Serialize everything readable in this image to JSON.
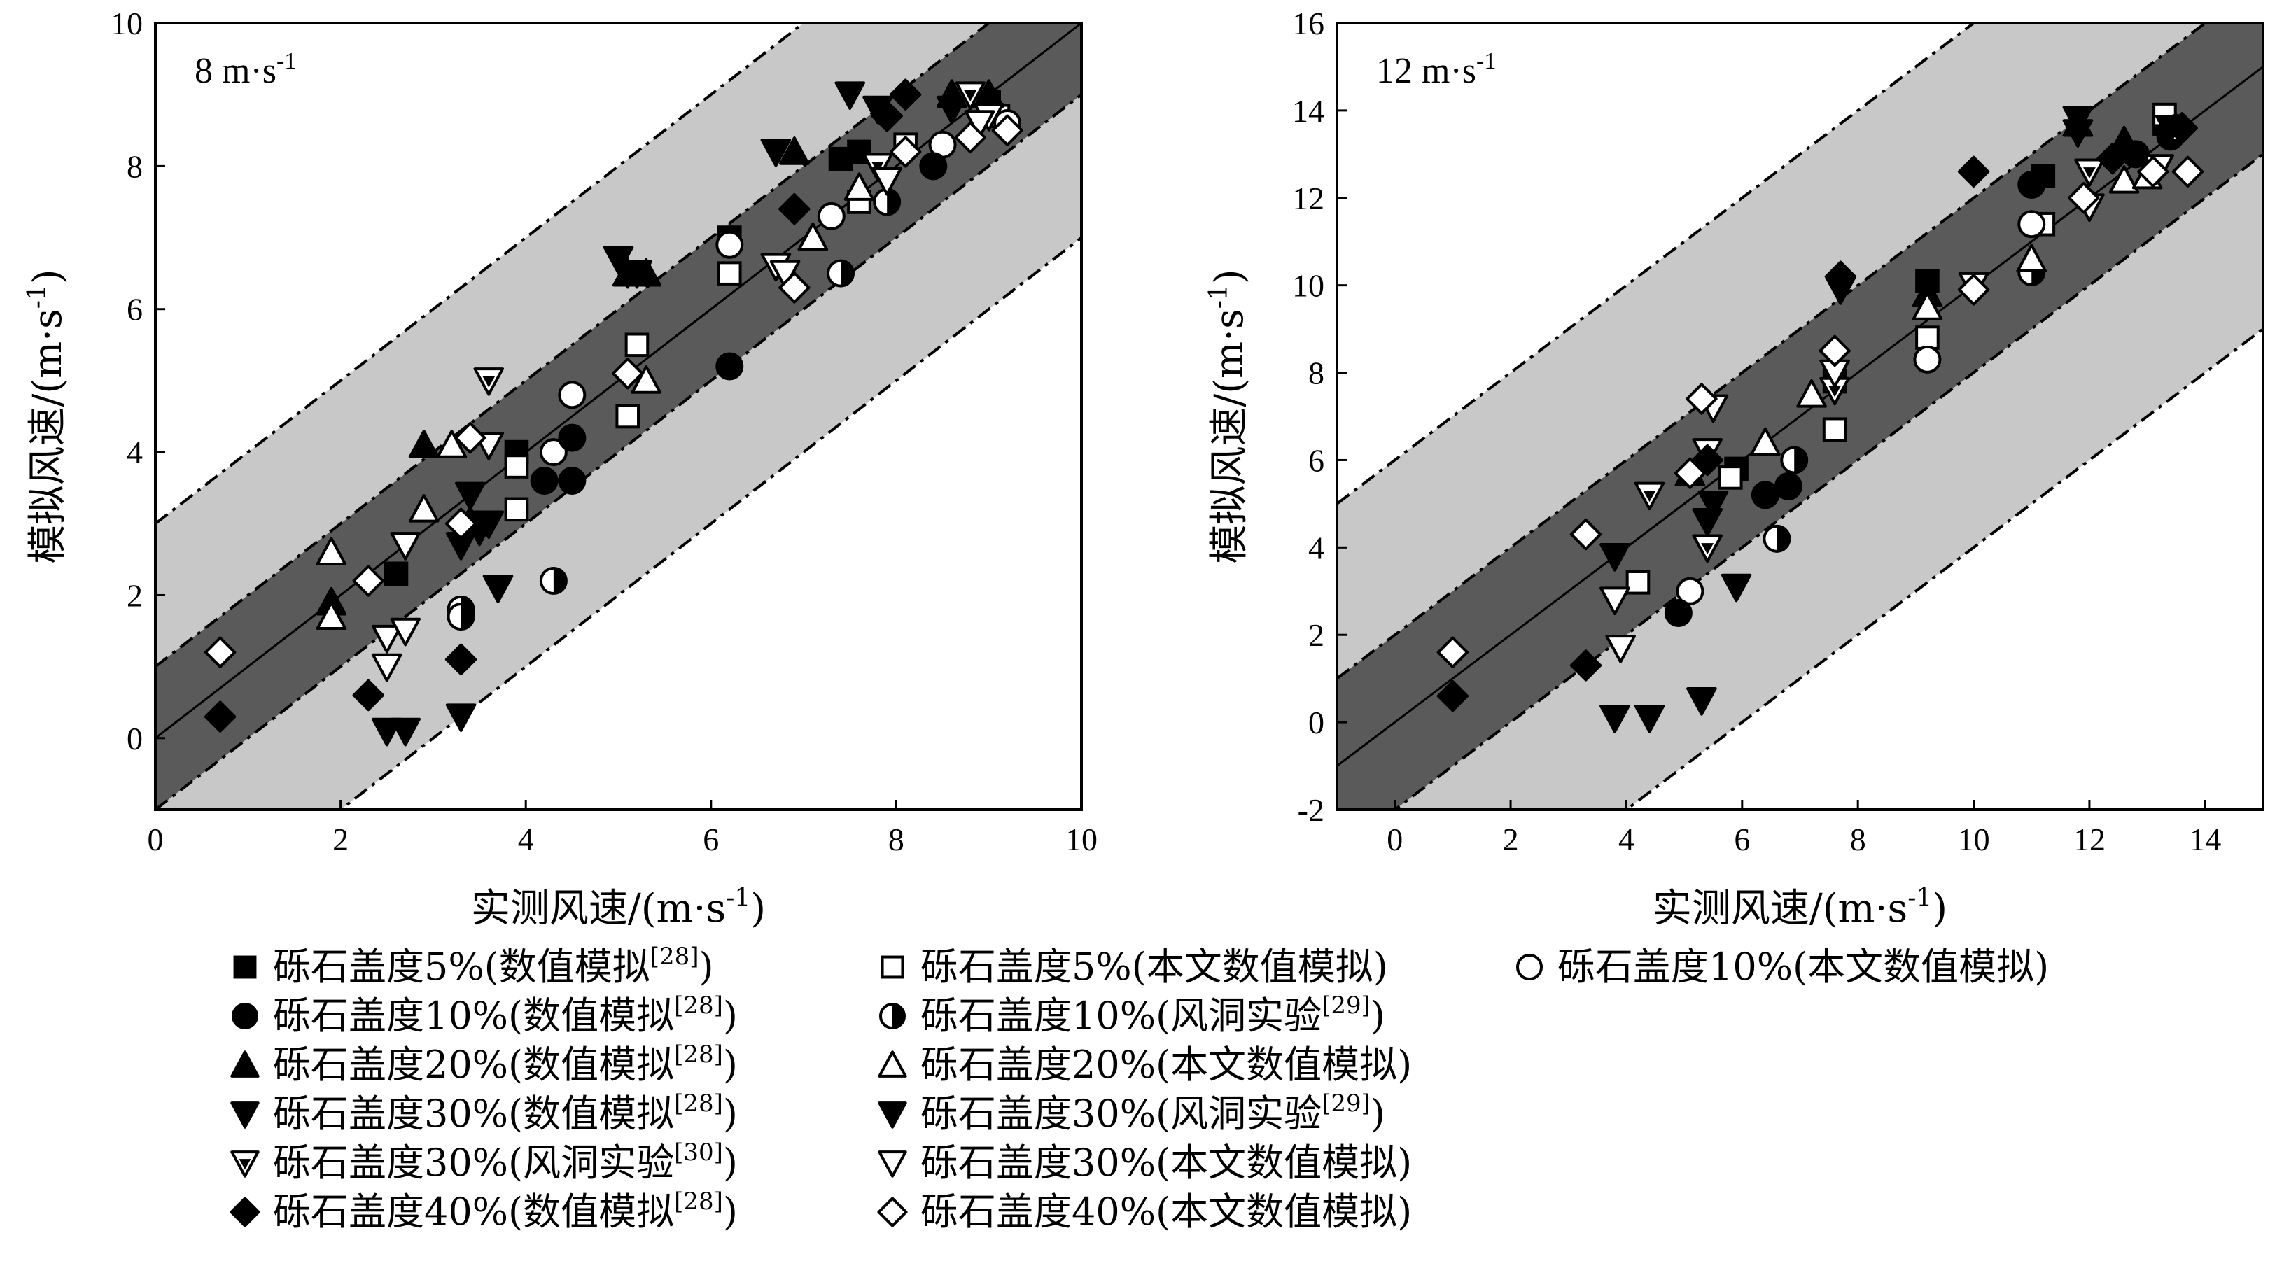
{
  "figure": {
    "x_label": "实测风速/(m·s",
    "y_label": "模拟风速/(m·s",
    "unit_sup": "-1",
    "unit_close": ")"
  },
  "legend": [
    {
      "key": "s5num",
      "marker": "square",
      "fill": "black",
      "text": "砾石盖度5%(数值模拟",
      "ref": "[28]",
      "tail": ")"
    },
    {
      "key": "s5our",
      "marker": "square",
      "fill": "white",
      "text": "砾石盖度5%(本文数值模拟)",
      "ref": "",
      "tail": ""
    },
    {
      "key": "c10our",
      "marker": "circle",
      "fill": "white",
      "text": "砾石盖度10%(本文数值模拟)",
      "ref": "",
      "tail": ""
    },
    {
      "key": "c10num",
      "marker": "circle",
      "fill": "black",
      "text": "砾石盖度10%(数值模拟",
      "ref": "[28]",
      "tail": ")"
    },
    {
      "key": "c10wind",
      "marker": "circle",
      "fill": "half",
      "text": "砾石盖度10%(风洞实验",
      "ref": "[29]",
      "tail": ")"
    },
    {
      "key": "t20num",
      "marker": "triangle-up",
      "fill": "black",
      "text": "砾石盖度20%(数值模拟",
      "ref": "[28]",
      "tail": ")"
    },
    {
      "key": "t20our",
      "marker": "triangle-up",
      "fill": "white",
      "text": "砾石盖度20%(本文数值模拟)",
      "ref": "",
      "tail": ""
    },
    {
      "key": "v30num",
      "marker": "triangle-down",
      "fill": "black",
      "text": "砾石盖度30%(数值模拟",
      "ref": "[28]",
      "tail": ")"
    },
    {
      "key": "v30w29",
      "marker": "triangle-down",
      "fill": "black",
      "text": "砾石盖度30%(风洞实验",
      "ref": "[29]",
      "tail": ")"
    },
    {
      "key": "v30w30",
      "marker": "triangle-down",
      "fill": "inner",
      "text": "砾石盖度30%(风洞实验",
      "ref": "[30]",
      "tail": ")"
    },
    {
      "key": "v30our",
      "marker": "triangle-down",
      "fill": "white",
      "text": "砾石盖度30%(本文数值模拟)",
      "ref": "",
      "tail": ""
    },
    {
      "key": "d40num",
      "marker": "diamond",
      "fill": "black",
      "text": "砾石盖度40%(数值模拟",
      "ref": "[28]",
      "tail": ")"
    },
    {
      "key": "d40our",
      "marker": "diamond",
      "fill": "white",
      "text": "砾石盖度40%(本文数值模拟)",
      "ref": "",
      "tail": ""
    }
  ],
  "chart_data": [
    {
      "type": "scatter",
      "title": "8 m·s",
      "title_sup": "-1",
      "xlim": [
        0,
        10
      ],
      "ylim": [
        -1,
        10
      ],
      "xticks": [
        0,
        2,
        4,
        6,
        8,
        10
      ],
      "yticks": [
        0,
        2,
        4,
        6,
        8,
        10
      ],
      "bands": {
        "inner_offset": 1.0,
        "outer_offset": 3.0,
        "diagonal": "y=x"
      },
      "series": [
        {
          "key": "s5num",
          "points": [
            [
              2.6,
              2.3
            ],
            [
              3.9,
              4.0
            ],
            [
              6.2,
              7.0
            ],
            [
              7.4,
              8.1
            ],
            [
              7.6,
              8.2
            ],
            [
              9.0,
              8.9
            ]
          ]
        },
        {
          "key": "s5our",
          "points": [
            [
              3.9,
              3.8
            ],
            [
              3.9,
              3.2
            ],
            [
              5.1,
              4.5
            ],
            [
              5.2,
              5.5
            ],
            [
              6.2,
              6.5
            ],
            [
              7.6,
              7.5
            ],
            [
              8.1,
              8.3
            ],
            [
              9.1,
              8.7
            ]
          ]
        },
        {
          "key": "c10our",
          "points": [
            [
              4.3,
              4.0
            ],
            [
              4.5,
              4.8
            ],
            [
              6.2,
              6.9
            ],
            [
              7.3,
              7.3
            ],
            [
              8.5,
              8.3
            ],
            [
              9.2,
              8.6
            ]
          ]
        },
        {
          "key": "c10num",
          "points": [
            [
              4.2,
              3.6
            ],
            [
              4.5,
              4.2
            ],
            [
              4.5,
              3.6
            ],
            [
              6.2,
              5.2
            ],
            [
              8.4,
              8.0
            ]
          ]
        },
        {
          "key": "c10wind",
          "points": [
            [
              3.3,
              1.8
            ],
            [
              3.3,
              1.7
            ],
            [
              4.3,
              2.2
            ],
            [
              7.4,
              6.5
            ],
            [
              7.9,
              7.5
            ]
          ]
        },
        {
          "key": "t20num",
          "points": [
            [
              1.9,
              1.9
            ],
            [
              2.9,
              4.1
            ],
            [
              5.1,
              6.5
            ],
            [
              5.3,
              6.5
            ],
            [
              6.9,
              8.2
            ],
            [
              8.6,
              9.0
            ],
            [
              9.0,
              9.0
            ]
          ]
        },
        {
          "key": "t20our",
          "points": [
            [
              1.9,
              2.6
            ],
            [
              1.9,
              1.7
            ],
            [
              2.9,
              3.2
            ],
            [
              3.2,
              4.1
            ],
            [
              5.3,
              5.0
            ],
            [
              7.1,
              7.0
            ],
            [
              7.6,
              7.7
            ]
          ]
        },
        {
          "key": "v30num",
          "points": [
            [
              2.5,
              0.1
            ],
            [
              2.7,
              0.1
            ],
            [
              3.3,
              0.3
            ],
            [
              3.5,
              2.9
            ],
            [
              3.6,
              3.0
            ],
            [
              3.7,
              2.1
            ],
            [
              5.0,
              6.7
            ],
            [
              6.7,
              8.2
            ],
            [
              7.8,
              8.8
            ]
          ]
        },
        {
          "key": "v30w29",
          "points": [
            [
              3.3,
              2.7
            ],
            [
              3.4,
              3.4
            ],
            [
              5.1,
              6.5
            ],
            [
              5.2,
              6.5
            ],
            [
              7.5,
              9.0
            ],
            [
              8.6,
              8.8
            ]
          ]
        },
        {
          "key": "v30w30",
          "points": [
            [
              3.6,
              5.0
            ],
            [
              6.7,
              6.6
            ],
            [
              7.8,
              8.0
            ],
            [
              8.8,
              9.0
            ],
            [
              9.0,
              8.7
            ]
          ]
        },
        {
          "key": "v30our",
          "points": [
            [
              2.5,
              1.4
            ],
            [
              2.5,
              1.0
            ],
            [
              2.7,
              1.5
            ],
            [
              2.7,
              2.7
            ],
            [
              3.6,
              4.1
            ],
            [
              6.8,
              6.5
            ],
            [
              7.9,
              7.8
            ],
            [
              8.9,
              8.6
            ]
          ]
        },
        {
          "key": "d40num",
          "points": [
            [
              0.7,
              0.3
            ],
            [
              2.3,
              0.6
            ],
            [
              3.3,
              1.1
            ],
            [
              3.4,
              3.0
            ],
            [
              6.9,
              7.4
            ],
            [
              7.9,
              8.7
            ],
            [
              8.1,
              9.0
            ]
          ]
        },
        {
          "key": "d40our",
          "points": [
            [
              0.7,
              1.2
            ],
            [
              2.3,
              2.2
            ],
            [
              3.3,
              3.0
            ],
            [
              3.4,
              4.2
            ],
            [
              5.1,
              5.1
            ],
            [
              6.9,
              6.3
            ],
            [
              8.1,
              8.2
            ],
            [
              8.8,
              8.4
            ],
            [
              9.2,
              8.5
            ]
          ]
        }
      ]
    },
    {
      "type": "scatter",
      "title": "12 m·s",
      "title_sup": "-1",
      "xlim": [
        -1,
        15
      ],
      "ylim": [
        -2,
        16
      ],
      "xticks": [
        0,
        2,
        4,
        6,
        8,
        10,
        12,
        14
      ],
      "yticks": [
        -2,
        0,
        2,
        4,
        6,
        8,
        10,
        12,
        14,
        16
      ],
      "bands": {
        "inner_offset": 2.0,
        "outer_offset": 6.0,
        "diagonal": "y=x"
      },
      "series": [
        {
          "key": "s5num",
          "points": [
            [
              5.9,
              5.8
            ],
            [
              7.6,
              7.8
            ],
            [
              9.2,
              10.1
            ],
            [
              11.2,
              12.5
            ],
            [
              13.3,
              13.7
            ]
          ]
        },
        {
          "key": "s5our",
          "points": [
            [
              4.2,
              3.2
            ],
            [
              5.8,
              5.6
            ],
            [
              7.6,
              6.7
            ],
            [
              9.2,
              8.8
            ],
            [
              11.2,
              11.4
            ],
            [
              13.3,
              13.9
            ]
          ]
        },
        {
          "key": "c10our",
          "points": [
            [
              5.1,
              3.0
            ],
            [
              9.2,
              8.3
            ],
            [
              11.0,
              11.4
            ]
          ]
        },
        {
          "key": "c10num",
          "points": [
            [
              4.9,
              2.5
            ],
            [
              6.4,
              5.2
            ],
            [
              6.8,
              5.4
            ],
            [
              11.0,
              12.3
            ],
            [
              12.8,
              13.0
            ],
            [
              13.4,
              13.4
            ]
          ]
        },
        {
          "key": "c10wind",
          "points": [
            [
              6.6,
              4.2
            ],
            [
              6.9,
              6.0
            ],
            [
              11.0,
              10.3
            ],
            [
              13.5,
              13.6
            ]
          ]
        },
        {
          "key": "t20num",
          "points": [
            [
              5.1,
              5.7
            ],
            [
              9.2,
              9.8
            ],
            [
              11.8,
              13.7
            ],
            [
              12.6,
              13.3
            ]
          ]
        },
        {
          "key": "t20our",
          "points": [
            [
              6.4,
              6.4
            ],
            [
              7.2,
              7.5
            ],
            [
              9.2,
              9.5
            ],
            [
              11.0,
              10.6
            ],
            [
              12.6,
              12.4
            ],
            [
              13.0,
              12.5
            ]
          ]
        },
        {
          "key": "v30num",
          "points": [
            [
              3.8,
              0.1
            ],
            [
              4.4,
              0.1
            ],
            [
              5.3,
              0.5
            ],
            [
              5.9,
              3.1
            ],
            [
              7.7,
              9.9
            ],
            [
              11.8,
              13.5
            ]
          ]
        },
        {
          "key": "v30w29",
          "points": [
            [
              3.8,
              3.8
            ],
            [
              5.4,
              4.6
            ],
            [
              5.5,
              5.0
            ],
            [
              11.8,
              13.8
            ],
            [
              13.4,
              13.6
            ]
          ]
        },
        {
          "key": "v30w30",
          "points": [
            [
              4.4,
              5.2
            ],
            [
              5.4,
              4.0
            ],
            [
              7.6,
              7.6
            ],
            [
              10.0,
              10.0
            ],
            [
              12.0,
              12.6
            ]
          ]
        },
        {
          "key": "v30our",
          "points": [
            [
              3.8,
              2.8
            ],
            [
              3.9,
              1.7
            ],
            [
              5.5,
              7.2
            ],
            [
              5.4,
              6.2
            ],
            [
              7.6,
              8.0
            ],
            [
              12.0,
              11.8
            ],
            [
              13.2,
              12.7
            ]
          ]
        },
        {
          "key": "d40num",
          "points": [
            [
              1.0,
              0.6
            ],
            [
              3.3,
              1.3
            ],
            [
              5.4,
              6.0
            ],
            [
              7.7,
              10.2
            ],
            [
              10.0,
              12.6
            ],
            [
              12.4,
              12.9
            ],
            [
              13.6,
              13.6
            ]
          ]
        },
        {
          "key": "d40our",
          "points": [
            [
              1.0,
              1.6
            ],
            [
              3.3,
              4.3
            ],
            [
              5.1,
              5.7
            ],
            [
              5.3,
              7.4
            ],
            [
              7.6,
              8.5
            ],
            [
              10.0,
              9.9
            ],
            [
              11.9,
              12.0
            ],
            [
              13.1,
              12.6
            ],
            [
              13.7,
              12.6
            ]
          ]
        }
      ]
    }
  ]
}
